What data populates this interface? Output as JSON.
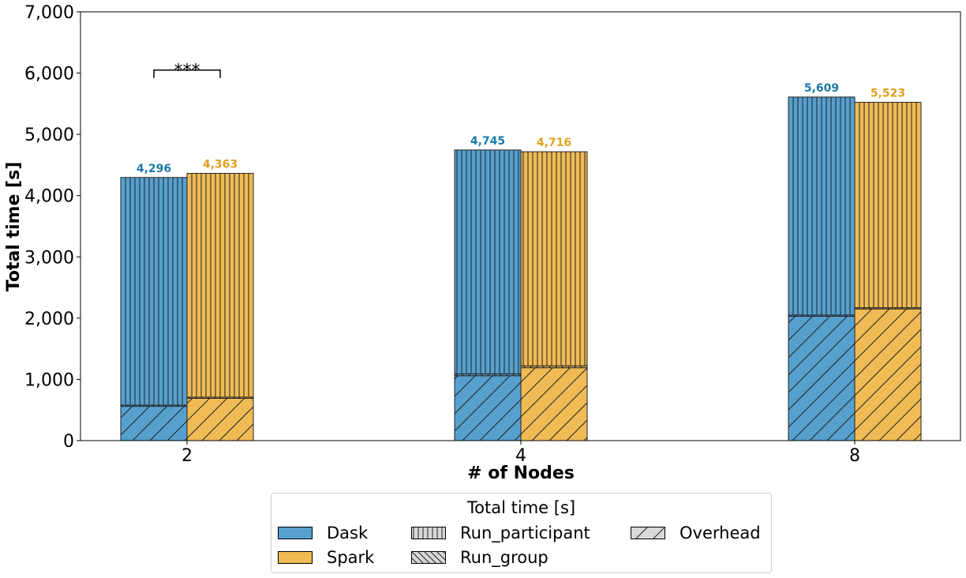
{
  "chart_data": {
    "type": "bar",
    "stacked": true,
    "xlabel": "# of Nodes",
    "ylabel": "Total time [s]",
    "categories": [
      "2",
      "4",
      "8"
    ],
    "ylim": [
      0,
      7000
    ],
    "yticks": [
      "0",
      "1,000",
      "2,000",
      "3,000",
      "4,000",
      "5,000",
      "6,000",
      "7,000"
    ],
    "grid": false,
    "series": [
      {
        "name": "Dask",
        "color": "#56a0ce",
        "label_color": "#1a7aab",
        "overhead": [
          560,
          1060,
          2030
        ],
        "run_group": [
          20,
          30,
          20
        ],
        "run_participant": [
          3716,
          3655,
          3559
        ],
        "totals": [
          4296,
          4745,
          5609
        ],
        "total_labels": [
          "4,296",
          "4,745",
          "5,609"
        ]
      },
      {
        "name": "Spark",
        "color": "#f0bb55",
        "label_color": "#e0a020",
        "overhead": [
          690,
          1190,
          2150
        ],
        "run_group": [
          20,
          30,
          20
        ],
        "run_participant": [
          3653,
          3496,
          3353
        ],
        "totals": [
          4363,
          4716,
          5523
        ],
        "total_labels": [
          "4,363",
          "4,716",
          "5,523"
        ]
      }
    ],
    "significance": {
      "category": "2",
      "label": "***"
    },
    "legend": {
      "title": "Total time [s]",
      "placement": "bottom-center",
      "entries": [
        "Dask",
        "Spark",
        "Run_participant",
        "Run_group",
        "Overhead"
      ]
    }
  }
}
